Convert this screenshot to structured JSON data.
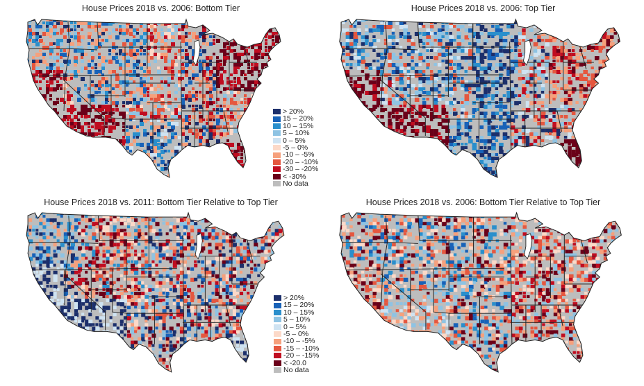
{
  "figure": {
    "panels": [
      {
        "id": "p1",
        "title": "House Prices 2018 vs. 2006: Bottom Tier",
        "legend": [
          "> 20%",
          "15 – 20%",
          "10 – 15%",
          "5 – 10%",
          "0 – 5%",
          "-5 – 0%",
          "-10 – -5%",
          "-20 – -10%",
          "-30 – -20%",
          "< -30%",
          "No data"
        ],
        "pattern": "bottom2006"
      },
      {
        "id": "p2",
        "title": "House Prices 2018 vs. 2006: Top Tier",
        "legend": [],
        "pattern": "top2006"
      },
      {
        "id": "p3",
        "title": "House Prices 2018 vs. 2011: Bottom Tier Relative to Top Tier",
        "legend": [
          "> 20%",
          "15 – 20%",
          "10 – 15%",
          "5 – 10%",
          "0 – 5%",
          "-5 – 0%",
          "-10 – -5%",
          "-15 – -10%",
          "-20 – -15%",
          "< -20.0",
          "No data"
        ],
        "pattern": "rel2011"
      },
      {
        "id": "p4",
        "title": "House Prices 2018 vs. 2006: Bottom Tier Relative to Top Tier",
        "legend": [],
        "pattern": "rel2006"
      }
    ],
    "palette": [
      "#1c2f6b",
      "#1862b8",
      "#2a8fcc",
      "#8ec3e3",
      "#cfe3f2",
      "#fcd9c8",
      "#f6a07c",
      "#e5573f",
      "#c00d20",
      "#6b0019",
      "#bdbdbd"
    ]
  }
}
